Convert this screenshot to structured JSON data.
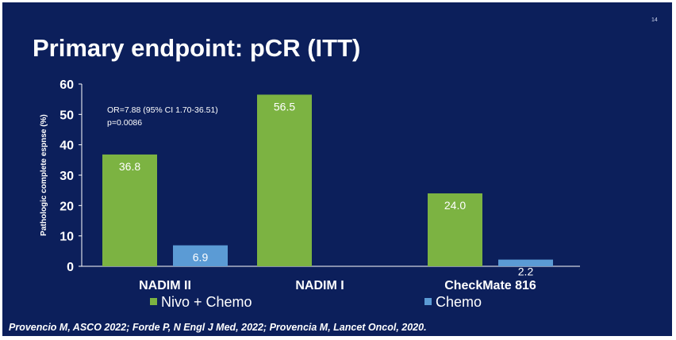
{
  "slide_number": "14",
  "title": "Primary endpoint: pCR (ITT)",
  "footer": "Provencio M, ASCO 2022; Forde P, N Engl J Med, 2022; Provencia M, Lancet Oncol, 2020.",
  "colors": {
    "background": "#0c1f5b",
    "nivo_chemo": "#7cb342",
    "chemo": "#5b9bd5"
  },
  "chart_data": {
    "type": "bar",
    "title": "",
    "ylabel": "Pathologic complete espnse (%)",
    "xlabel": "",
    "ylim": [
      0,
      60
    ],
    "yticks": [
      0,
      10,
      20,
      30,
      40,
      50,
      60
    ],
    "categories": [
      "NADIM II",
      "NADIM I",
      "CheckMate 816"
    ],
    "series": [
      {
        "name": "Nivo + Chemo",
        "color": "#7cb342",
        "values": [
          36.8,
          56.5,
          24.0
        ],
        "labels": [
          "36.8",
          "56.5",
          "24.0"
        ]
      },
      {
        "name": "Chemo",
        "color": "#5b9bd5",
        "values": [
          6.9,
          null,
          2.2
        ],
        "labels": [
          "6.9",
          "",
          "2.2"
        ]
      }
    ],
    "annotation": [
      "OR=7.88 (95% CI 1.70-36.51)",
      "p=0.0086"
    ],
    "legend_position": "bottom",
    "grid": false
  }
}
